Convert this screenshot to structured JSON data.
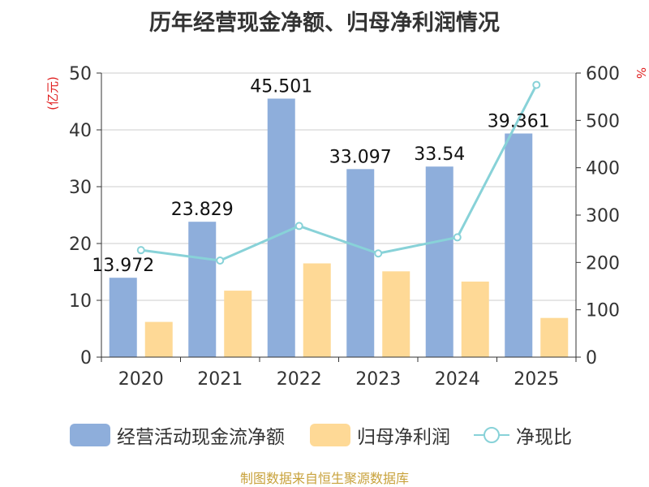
{
  "title": "历年经营现金净额、归母净利润情况",
  "source": "制图数据来自恒生聚源数据库",
  "left_unit": "(亿元)",
  "right_unit": "%",
  "legend": [
    "经营活动现金流净额",
    "归母净利润",
    "净现比"
  ],
  "colors": {
    "bar1": "#8eaedb",
    "bar2": "#fed996",
    "line": "#88d2d8"
  },
  "chart_data": {
    "type": "bar",
    "title": "历年经营现金净额、归母净利润情况",
    "categories": [
      "2020",
      "2021",
      "2022",
      "2023",
      "2024",
      "2025"
    ],
    "series": [
      {
        "name": "经营活动现金流净额",
        "axis": "left",
        "values": [
          13.972,
          23.829,
          45.501,
          33.097,
          33.54,
          39.361
        ]
      },
      {
        "name": "归母净利润",
        "axis": "left",
        "values": [
          6.2,
          11.7,
          16.5,
          15.1,
          13.3,
          6.9
        ]
      },
      {
        "name": "净现比",
        "type": "line",
        "axis": "right",
        "values": [
          226,
          204,
          277,
          219,
          253,
          575
        ]
      }
    ],
    "data_labels": [
      "13.972",
      "23.829",
      "45.501",
      "33.097",
      "33.54",
      "39.361"
    ],
    "y_left": {
      "label": "(亿元)",
      "range": [
        0,
        50
      ],
      "ticks": [
        0,
        10,
        20,
        30,
        40,
        50
      ]
    },
    "y_right": {
      "label": "%",
      "range": [
        0,
        600
      ],
      "ticks": [
        0,
        100,
        200,
        300,
        400,
        500,
        600
      ]
    },
    "grid": true,
    "legend_position": "bottom"
  }
}
